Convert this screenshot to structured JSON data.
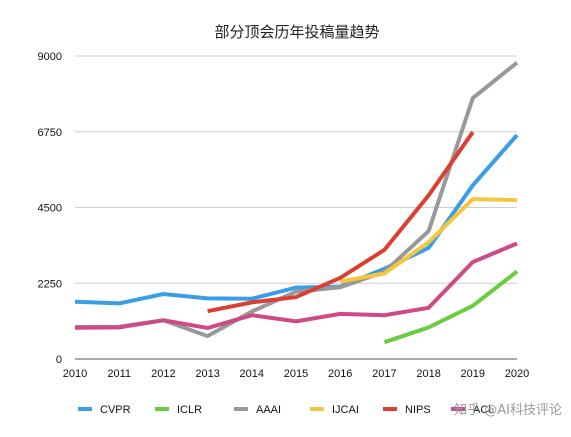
{
  "chart_data": {
    "type": "line",
    "title": "部分顶会历年投稿量趋势",
    "x": [
      2010,
      2011,
      2012,
      2013,
      2014,
      2015,
      2016,
      2017,
      2018,
      2019,
      2020
    ],
    "xlabels": [
      "2010",
      "2011",
      "2012",
      "2013",
      "2014",
      "2015",
      "2016",
      "2017",
      "2018",
      "2019",
      "2020"
    ],
    "ylim": [
      0,
      9000
    ],
    "yticks": [
      0,
      2250,
      4500,
      6750,
      9000
    ],
    "yticklabels": [
      "0",
      "2250",
      "4500",
      "6750",
      "9000"
    ],
    "grid": "horizontal",
    "legend_position": "bottom",
    "series": [
      {
        "name": "CVPR",
        "color": "#3a9ee6",
        "values": [
          1700,
          1650,
          1930,
          1800,
          1790,
          2120,
          2150,
          2680,
          3300,
          5160,
          6650
        ]
      },
      {
        "name": "ICLR",
        "color": "#6acd3e",
        "values": [
          null,
          null,
          null,
          null,
          null,
          null,
          null,
          500,
          940,
          1580,
          2600
        ]
      },
      {
        "name": "AAAI",
        "color": "#999999",
        "values": [
          950,
          960,
          1150,
          680,
          1410,
          2000,
          2130,
          2590,
          3800,
          7750,
          8800
        ]
      },
      {
        "name": "IJCAI",
        "color": "#f5c63b",
        "values": [
          null,
          null,
          null,
          null,
          null,
          null,
          2300,
          2540,
          3470,
          4750,
          4720
        ]
      },
      {
        "name": "NIPS",
        "color": "#dd3e32",
        "values": [
          null,
          null,
          null,
          1420,
          1680,
          1840,
          2410,
          3240,
          4860,
          6740,
          null
        ]
      },
      {
        "name": "ACL",
        "color": "#cf4a84",
        "values": [
          930,
          940,
          1150,
          920,
          1300,
          1120,
          1340,
          1300,
          1520,
          2880,
          3430
        ]
      }
    ]
  },
  "watermark": "知乎 @AI科技评论"
}
